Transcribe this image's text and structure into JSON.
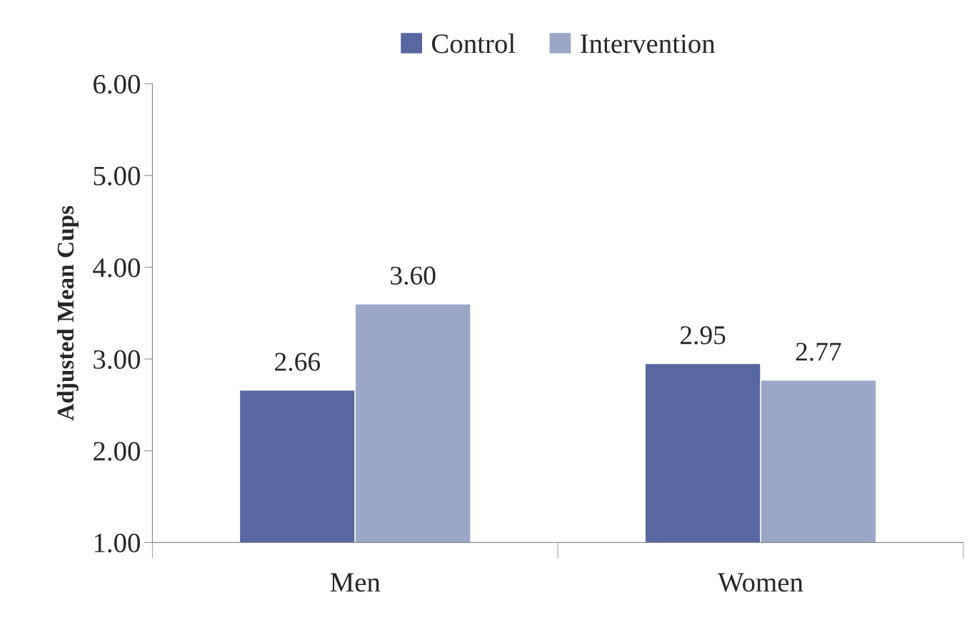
{
  "chart_data": {
    "type": "bar",
    "ylabel": "Adjusted Mean Cups",
    "categories": [
      "Men",
      "Women"
    ],
    "series": [
      {
        "name": "Control",
        "color": "#5767a0",
        "values": [
          2.66,
          2.95
        ],
        "value_labels": [
          "2.66",
          "2.95"
        ]
      },
      {
        "name": "Intervention",
        "color": "#9aa7c9",
        "values": [
          3.6,
          2.77
        ],
        "value_labels": [
          "3.60",
          "2.77"
        ]
      }
    ],
    "ylim": [
      1,
      6
    ],
    "yticks": [
      {
        "value": 1,
        "label": "1.00"
      },
      {
        "value": 2,
        "label": "2.00"
      },
      {
        "value": 3,
        "label": "3.00"
      },
      {
        "value": 4,
        "label": "4.00"
      },
      {
        "value": 5,
        "label": "5.00"
      },
      {
        "value": 6,
        "label": "6.00"
      }
    ],
    "grid": false,
    "legend": "top"
  }
}
